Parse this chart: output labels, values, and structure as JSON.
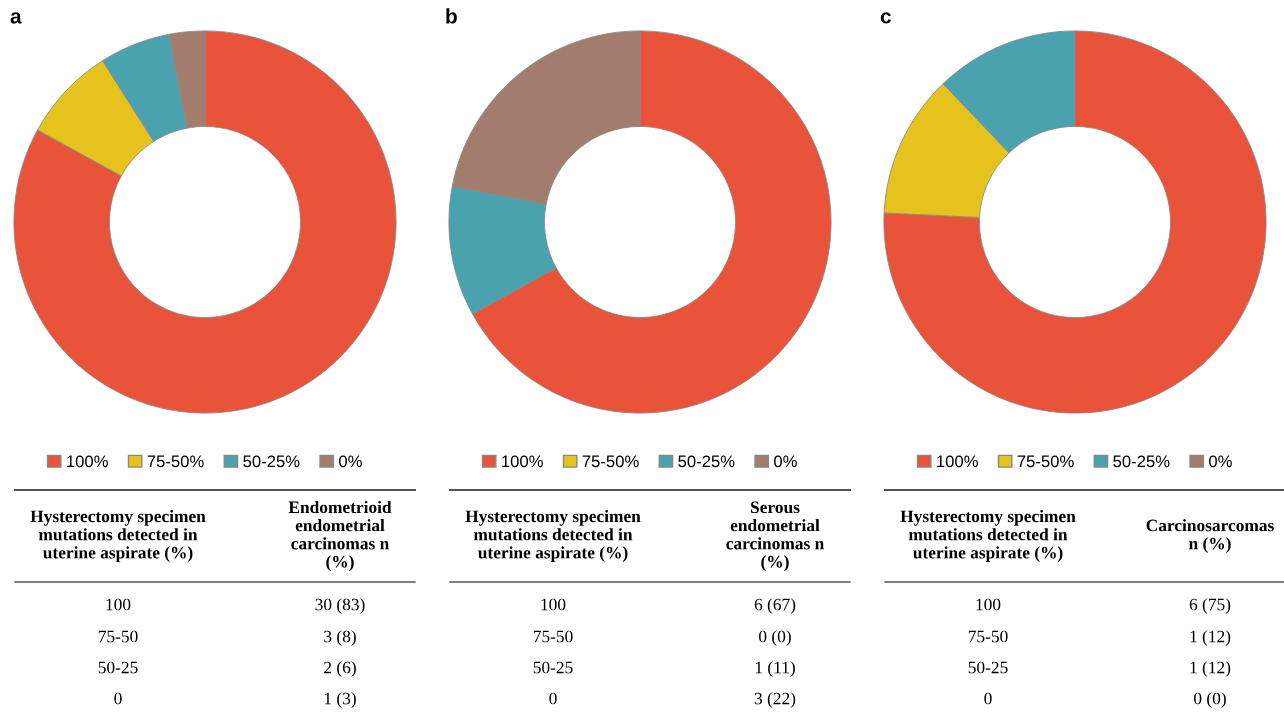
{
  "chart_data": [
    {
      "type": "donut",
      "title": "a",
      "categories": [
        "100%",
        "75-50%",
        "50-25%",
        "0%"
      ],
      "values": [
        83,
        8,
        6,
        3
      ],
      "colors": [
        "#e8533a",
        "#e6c21c",
        "#4aa2ae",
        "#a27d6e"
      ],
      "legend": "bottom",
      "annotations": [
        "Hysterectomy specimen mutations detected in uterine aspirate (%)",
        "Endometrioid endometrial carcinomas n (%)",
        "100",
        "30 (83)",
        "75-50",
        "3 (8)",
        "50-25",
        "2 (6)",
        "0",
        "1 (3)"
      ]
    },
    {
      "type": "donut",
      "title": "b",
      "categories": [
        "100%",
        "75-50%",
        "50-25%",
        "0%"
      ],
      "values": [
        67,
        0,
        11,
        22
      ],
      "colors": [
        "#e8533a",
        "#e6c21c",
        "#4aa2ae",
        "#a27d6e"
      ],
      "legend": "bottom",
      "annotations": [
        "Hysterectomy specimen mutations detected in uterine aspirate (%)",
        "Serous endometrial carcinomas n (%)",
        "100",
        "6 (67)",
        "75-50",
        "0 (0)",
        "50-25",
        "1 (11)",
        "0",
        "3 (22)"
      ]
    },
    {
      "type": "donut",
      "title": "c",
      "categories": [
        "100%",
        "75-50%",
        "50-25%",
        "0%"
      ],
      "values": [
        75,
        12,
        12,
        0
      ],
      "colors": [
        "#e8533a",
        "#e6c21c",
        "#4aa2ae",
        "#a27d6e"
      ],
      "legend": "bottom",
      "annotations": [
        "Hysterectomy specimen mutations detected in uterine aspirate (%)",
        "Carcinosarcomas n (%)",
        "100",
        "6 (75)",
        "75-50",
        "1 (12)",
        "50-25",
        "1 (12)",
        "0",
        "0 (0)"
      ]
    }
  ]
}
